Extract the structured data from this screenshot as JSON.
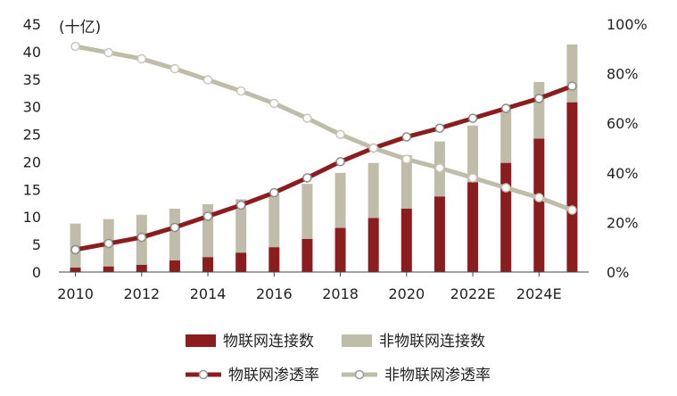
{
  "chart_data": {
    "type": "bar+line",
    "unit_label": "(十亿)",
    "categories": [
      "2010",
      "2011",
      "2012",
      "2013",
      "2014",
      "2015",
      "2016",
      "2017",
      "2018",
      "2019",
      "2020",
      "2021",
      "2022E",
      "2023E",
      "2024E",
      "2025E"
    ],
    "x_tick_labels": [
      "2010",
      "2012",
      "2014",
      "2016",
      "2018",
      "2020",
      "2022E",
      "2024E"
    ],
    "y_left": {
      "min": 0,
      "max": 45,
      "ticks": [
        0,
        5,
        10,
        15,
        20,
        25,
        30,
        35,
        40,
        45
      ]
    },
    "y_right": {
      "min": 0,
      "max": 100,
      "ticks": [
        "0%",
        "20%",
        "40%",
        "60%",
        "80%",
        "100%"
      ]
    },
    "series": [
      {
        "name": "物联网连接数",
        "kind": "bar-stack-bottom",
        "color": "#8b1d1f",
        "axis": "left",
        "values": [
          0.8,
          1.0,
          1.3,
          2.1,
          2.7,
          3.5,
          4.5,
          6.0,
          8.0,
          9.8,
          11.5,
          13.7,
          16.3,
          19.8,
          24.2,
          30.8
        ]
      },
      {
        "name": "非物联网连接数",
        "kind": "bar-stack-top",
        "color": "#bfbca9",
        "axis": "left",
        "values": [
          8.0,
          8.6,
          9.1,
          9.4,
          9.6,
          9.7,
          9.7,
          10.0,
          10.0,
          10.0,
          9.7,
          10.0,
          10.3,
          10.0,
          10.3,
          10.5
        ]
      },
      {
        "name": "物联网渗透率",
        "kind": "line",
        "color": "#8b1d1f",
        "axis": "right",
        "values": [
          9,
          11.5,
          14,
          18,
          22.5,
          27,
          32,
          38,
          44.5,
          50,
          54.5,
          58,
          62,
          66,
          70,
          75
        ]
      },
      {
        "name": "非物联网渗透率",
        "kind": "line",
        "color": "#bfbca9",
        "axis": "right",
        "values": [
          91,
          88.5,
          86,
          82,
          77.5,
          73,
          68,
          62,
          55.5,
          50,
          45.5,
          42,
          38,
          34,
          30,
          25
        ]
      }
    ],
    "legend_placement": "bottom",
    "grid": false
  }
}
